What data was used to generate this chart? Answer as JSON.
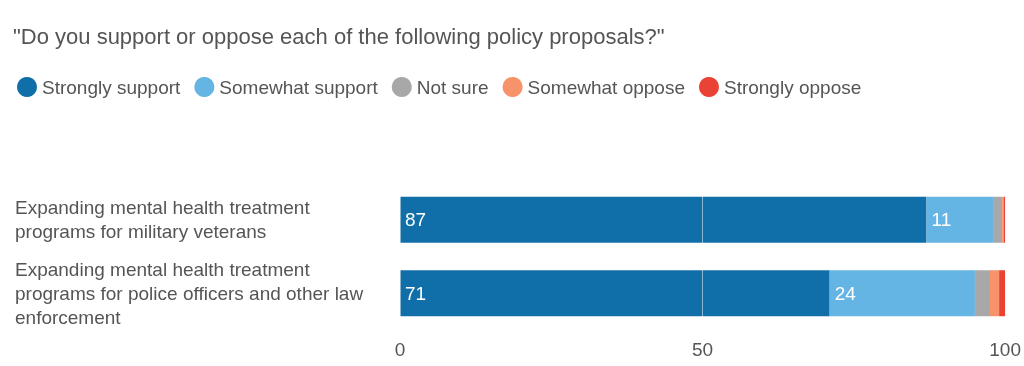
{
  "chart_data": {
    "type": "bar",
    "orientation": "horizontal",
    "stacked": true,
    "title": "\"Do you support or oppose each of the following policy proposals?\"",
    "categories": [
      "Expanding mental health treatment programs for military veterans",
      "Expanding mental health treatment programs for police officers and other law enforcement"
    ],
    "series": [
      {
        "name": "Strongly support",
        "color": "#106fa8",
        "values": [
          87,
          71
        ],
        "value_labels": [
          "87",
          "71"
        ]
      },
      {
        "name": "Somewhat support",
        "color": "#64b4e4",
        "values": [
          11,
          24
        ],
        "value_labels": [
          "11",
          "24"
        ]
      },
      {
        "name": "Not sure",
        "color": "#a8a8a8",
        "values": [
          1.5,
          2.5
        ]
      },
      {
        "name": "Somewhat oppose",
        "color": "#f7926a",
        "values": [
          0.3,
          1.5
        ]
      },
      {
        "name": "Strongly oppose",
        "color": "#ea4335",
        "values": [
          0.2,
          1
        ]
      }
    ],
    "xlim": [
      0,
      100
    ],
    "xticks": [
      0,
      50,
      100
    ],
    "grid": "x",
    "legend": "top left"
  }
}
